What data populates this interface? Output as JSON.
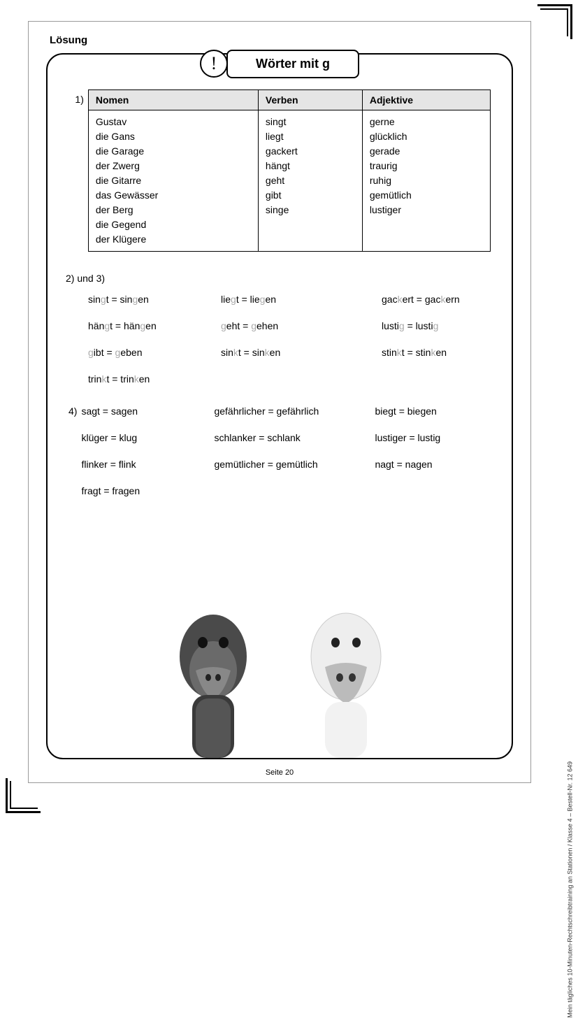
{
  "header": {
    "loesung": "Lösung",
    "title": "Wörter mit g",
    "excl": "!"
  },
  "table": {
    "headers": [
      "Nomen",
      "Verben",
      "Adjektive"
    ],
    "nomen": [
      "Gustav",
      "die Gans",
      "die Garage",
      "der Zwerg",
      "die Gitarre",
      "das Gewässer",
      "der Berg",
      "die Gegend",
      "der Klügere"
    ],
    "verben": [
      "singt",
      "liegt",
      "gackert",
      "hängt",
      "geht",
      "gibt",
      "singe"
    ],
    "adjektive": [
      "gerne",
      "glücklich",
      "gerade",
      "traurig",
      "ruhig",
      "gemütlich",
      "lustiger"
    ]
  },
  "labels": {
    "q1": "1)",
    "q23": "2)  und 3)",
    "q4": "4)"
  },
  "q23": [
    [
      [
        "sin",
        "g",
        "t = sin",
        "g",
        "en"
      ],
      [
        "lie",
        "g",
        "t = lie",
        "g",
        "en"
      ],
      [
        "gac",
        "k",
        "ert = gac",
        "k",
        "ern"
      ]
    ],
    [
      [
        "hän",
        "g",
        "t = hän",
        "g",
        "en"
      ],
      [
        "",
        "g",
        "eht = ",
        "g",
        "ehen"
      ],
      [
        "lusti",
        "g",
        " = lusti",
        "g",
        ""
      ]
    ],
    [
      [
        "",
        "g",
        "ibt = ",
        "g",
        "eben"
      ],
      [
        "sin",
        "k",
        "t = sin",
        "k",
        "en"
      ],
      [
        "stin",
        "k",
        "t = stin",
        "k",
        "en"
      ]
    ],
    [
      [
        "trin",
        "k",
        "t = trin",
        "k",
        "en"
      ],
      null,
      null
    ]
  ],
  "q4": [
    [
      "sagt = sagen",
      "gefährlicher = gefährlich",
      "biegt = biegen"
    ],
    [
      "klüger = klug",
      "schlanker = schlank",
      "lustiger = lustig"
    ],
    [
      "flinker = flink",
      "gemütlicher = gemütlich",
      "nagt = nagen"
    ],
    [
      "fragt = fragen",
      null,
      null
    ]
  ],
  "footer": {
    "page": "Seite 20",
    "side": "Mein tägliches 10-Minuten-Rechtschreibtraining an Stationen / Klasse 4   –   Bestell-Nr. 12 649"
  },
  "colors": {
    "header_bg": "#e5e5e5",
    "light": "#aaaaaa",
    "border": "#000000"
  }
}
